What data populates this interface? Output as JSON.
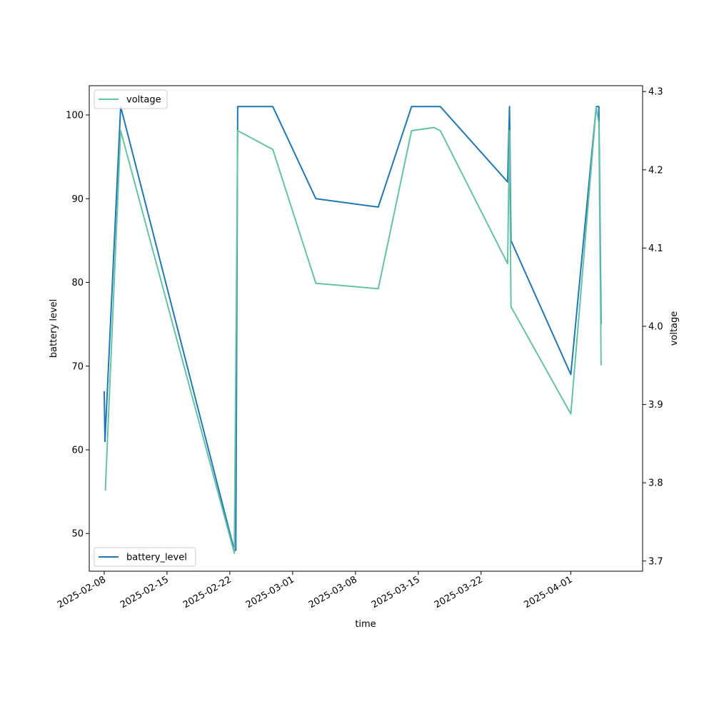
{
  "chart_data": {
    "type": "line",
    "xlabel": "time",
    "ylabel_left": "battery level",
    "ylabel_right": "voltage",
    "xlim": [
      "2025-02-06T08:00",
      "2025-04-09T00:00"
    ],
    "ylim_left": [
      45.5,
      103.5
    ],
    "ylim_right": [
      3.687,
      4.3075
    ],
    "x_ticks": [
      "2025-02-08",
      "2025-02-15",
      "2025-02-22",
      "2025-03-01",
      "2025-03-08",
      "2025-03-15",
      "2025-03-22",
      "2025-04-01"
    ],
    "y_ticks_left": [
      50,
      60,
      70,
      80,
      90,
      100
    ],
    "y_ticks_right": [
      "3.7",
      "3.8",
      "3.9",
      "4.0",
      "4.1",
      "4.2",
      "4.3"
    ],
    "legend_left": {
      "label": "battery_level",
      "placement": "lower-left"
    },
    "legend_right": {
      "label": "voltage",
      "placement": "upper-left"
    },
    "series": [
      {
        "name": "battery_level",
        "axis": "left",
        "color": "#1f77b4",
        "points": [
          [
            "2025-02-08T00:00",
            67
          ],
          [
            "2025-02-08T02:00",
            61
          ],
          [
            "2025-02-09T20:00",
            101
          ],
          [
            "2025-02-22T12:00",
            48
          ],
          [
            "2025-02-22T16:00",
            48
          ],
          [
            "2025-02-22T21:00",
            101
          ],
          [
            "2025-02-26T19:00",
            101
          ],
          [
            "2025-03-03T14:00",
            90
          ],
          [
            "2025-03-10T13:00",
            89
          ],
          [
            "2025-03-14T06:00",
            101
          ],
          [
            "2025-03-17T11:00",
            101
          ],
          [
            "2025-03-24T23:00",
            92
          ],
          [
            "2025-03-25T04:00",
            101
          ],
          [
            "2025-03-25T08:00",
            85
          ],
          [
            "2025-04-01T00:00",
            69
          ],
          [
            "2025-04-03T20:00",
            101
          ],
          [
            "2025-04-04T03:00",
            101
          ],
          [
            "2025-04-04T09:00",
            75
          ]
        ]
      },
      {
        "name": "voltage",
        "axis": "right",
        "color": "#66c2a5",
        "points": [
          [
            "2025-02-08T03:00",
            3.79
          ],
          [
            "2025-02-09T20:00",
            4.25
          ],
          [
            "2025-02-22T12:00",
            3.71
          ],
          [
            "2025-02-22T21:00",
            4.25
          ],
          [
            "2025-02-26T19:00",
            4.226
          ],
          [
            "2025-03-03T14:00",
            4.055
          ],
          [
            "2025-03-10T13:00",
            4.048
          ],
          [
            "2025-03-14T06:00",
            4.25
          ],
          [
            "2025-03-16T18:00",
            4.254
          ],
          [
            "2025-03-17T11:00",
            4.25
          ],
          [
            "2025-03-24T23:00",
            4.08
          ],
          [
            "2025-03-25T04:00",
            4.25
          ],
          [
            "2025-03-25T08:00",
            4.025
          ],
          [
            "2025-04-01T00:00",
            3.888
          ],
          [
            "2025-04-03T20:00",
            4.28
          ],
          [
            "2025-04-04T03:00",
            4.26
          ],
          [
            "2025-04-04T09:00",
            3.95
          ]
        ]
      }
    ]
  }
}
